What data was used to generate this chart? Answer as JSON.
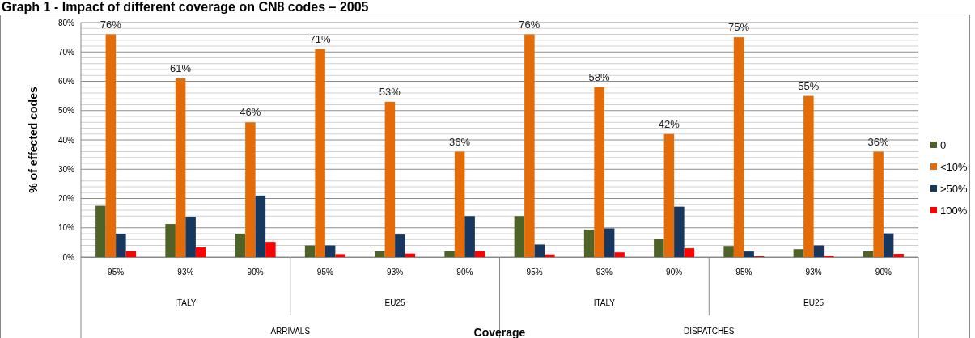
{
  "chart_data": {
    "type": "bar",
    "title": "Graph 1 - Impact of different coverage on CN8 codes – 2005",
    "xlabel": "Coverage",
    "ylabel": "% of effected codes",
    "categories": [
      "95%",
      "93%",
      "90%",
      "95%",
      "93%",
      "90%",
      "95%",
      "93%",
      "90%",
      "95%",
      "93%",
      "90%"
    ],
    "series": [
      {
        "name": "0",
        "color": "#4f6228",
        "values": [
          17.5,
          11.3,
          8,
          4,
          2,
          2,
          14,
          9.4,
          6.2,
          3.8,
          2.7,
          2
        ]
      },
      {
        "name": "<10%",
        "color": "#e36c09",
        "values": [
          76,
          61,
          46,
          71,
          53,
          36,
          76,
          58,
          42,
          75,
          55,
          36
        ],
        "value_labels": [
          "76%",
          "61%",
          "46%",
          "71%",
          "53%",
          "36%",
          "76%",
          "58%",
          "42%",
          "75%",
          "55%",
          "36%"
        ]
      },
      {
        "name": ">50%",
        "color": "#17375e",
        "values": [
          8,
          13.8,
          21,
          4,
          7.7,
          14,
          4.3,
          9.8,
          17.2,
          1.9,
          4,
          8.1
        ]
      },
      {
        "name": "100%",
        "color": "#ff0000",
        "values": [
          2,
          3.3,
          5.2,
          1,
          1.2,
          2,
          0.9,
          1.6,
          3,
          0.3,
          0.5,
          1.1
        ]
      }
    ],
    "ylim": [
      0,
      80
    ],
    "yticks": [
      {
        "value": 0,
        "label": "0%"
      },
      {
        "value": 10,
        "label": "10%"
      },
      {
        "value": 20,
        "label": "20%"
      },
      {
        "value": 30,
        "label": "30%"
      },
      {
        "value": 40,
        "label": "40%"
      },
      {
        "value": 50,
        "label": "50%"
      },
      {
        "value": 60,
        "label": "60%"
      },
      {
        "value": 70,
        "label": "70%"
      },
      {
        "value": 80,
        "label": "80%"
      }
    ],
    "grid": true,
    "legend": "right",
    "annotations": [
      "ITALY",
      "EU25",
      "ITALY",
      "EU25",
      "ARRIVALS",
      "DISPATCHES"
    ]
  }
}
